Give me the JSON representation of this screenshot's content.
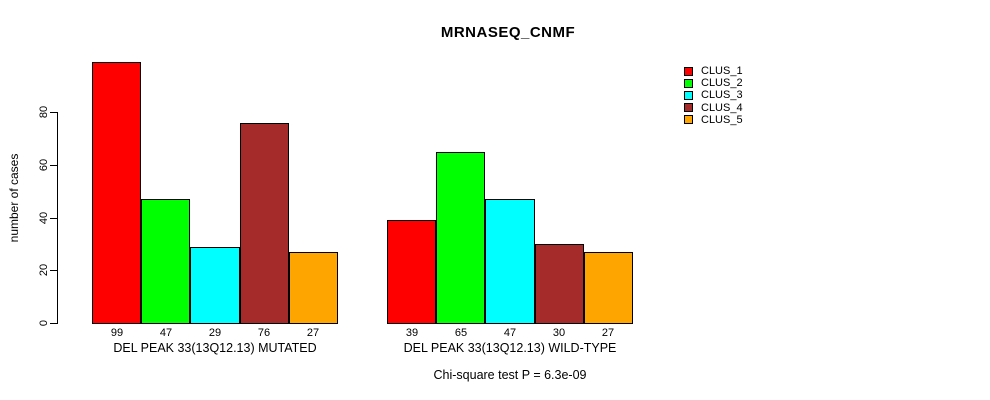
{
  "title": "MRNASEQ_CNMF",
  "annotation": "Chi-square test P = 6.3e-09",
  "axes": {
    "ylabel": "number of cases",
    "yticks": [
      "0",
      "20",
      "40",
      "60",
      "80"
    ]
  },
  "legend": {
    "position": "right",
    "entries": [
      {
        "label": "CLUS_1",
        "color": "#FF0000"
      },
      {
        "label": "CLUS_2",
        "color": "#00FF00"
      },
      {
        "label": "CLUS_3",
        "color": "#00FFFF"
      },
      {
        "label": "CLUS_4",
        "color": "#A52A2A"
      },
      {
        "label": "CLUS_5",
        "color": "#FFA500"
      }
    ]
  },
  "chart_data": {
    "type": "bar",
    "title": "MRNASEQ_CNMF",
    "xlabel": "",
    "ylabel": "number of cases",
    "categories": [
      "DEL PEAK 33(13Q12.13) MUTATED",
      "DEL PEAK 33(13Q12.13) WILD-TYPE"
    ],
    "series": [
      {
        "name": "CLUS_1",
        "color": "#FF0000",
        "values": [
          99,
          39
        ]
      },
      {
        "name": "CLUS_2",
        "color": "#00FF00",
        "values": [
          47,
          65
        ]
      },
      {
        "name": "CLUS_3",
        "color": "#00FFFF",
        "values": [
          29,
          47
        ]
      },
      {
        "name": "CLUS_4",
        "color": "#A52A2A",
        "values": [
          76,
          30
        ]
      },
      {
        "name": "CLUS_5",
        "color": "#FFA500",
        "values": [
          27,
          27
        ]
      }
    ],
    "bar_value_labels": [
      [
        99,
        47,
        29,
        76,
        27
      ],
      [
        39,
        65,
        47,
        30,
        27
      ]
    ],
    "yticks": [
      0,
      20,
      40,
      60,
      80
    ],
    "ylim": [
      0,
      105
    ],
    "grid": false,
    "bar_border_color": "#000000",
    "legend_position": "right",
    "annotation": "Chi-square test P = 6.3e-09"
  }
}
